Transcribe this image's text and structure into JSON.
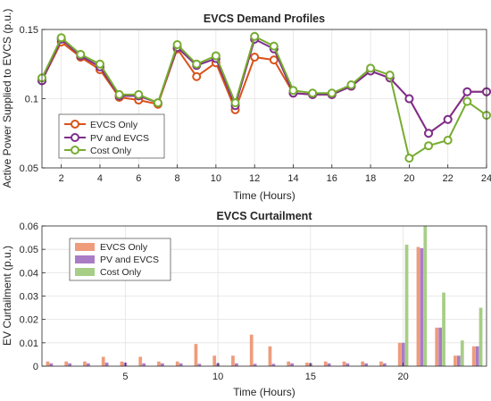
{
  "chart_data": [
    {
      "type": "line",
      "title": "EVCS Demand Profiles",
      "xlabel": "Time (Hours)",
      "ylabel": "Active Power Supplied to EVCS (p.u.)",
      "xlim": [
        1,
        24
      ],
      "ylim": [
        0.05,
        0.15
      ],
      "xticks": [
        2,
        4,
        6,
        8,
        10,
        12,
        14,
        16,
        18,
        20,
        22,
        24
      ],
      "yticks": [
        0.05,
        0.1,
        0.15
      ],
      "ytick_labels": [
        "0.05",
        "0.1",
        "0.15"
      ],
      "grid": true,
      "legend_position": "left-lower",
      "x": [
        1,
        2,
        3,
        4,
        5,
        6,
        7,
        8,
        9,
        10,
        11,
        12,
        13,
        14,
        15,
        16,
        17,
        18,
        19,
        20,
        21,
        22,
        23,
        24
      ],
      "series": [
        {
          "name": "EVCS Only",
          "color": "#D95319",
          "values": [
            0.113,
            0.141,
            0.13,
            0.121,
            0.101,
            0.099,
            0.096,
            0.136,
            0.116,
            0.126,
            0.092,
            0.13,
            0.128,
            0.104,
            0.103,
            0.103,
            0.109,
            0.12,
            0.115,
            0.1,
            0.075,
            0.085,
            0.105,
            0.105
          ]
        },
        {
          "name": "PV and EVCS",
          "color": "#7E2F8E",
          "values": [
            0.113,
            0.143,
            0.131,
            0.123,
            0.102,
            0.102,
            0.097,
            0.137,
            0.124,
            0.129,
            0.095,
            0.143,
            0.136,
            0.104,
            0.103,
            0.103,
            0.109,
            0.12,
            0.115,
            0.1,
            0.075,
            0.085,
            0.105,
            0.105
          ]
        },
        {
          "name": "Cost Only",
          "color": "#77AC30",
          "values": [
            0.115,
            0.144,
            0.132,
            0.125,
            0.103,
            0.103,
            0.097,
            0.139,
            0.125,
            0.131,
            0.097,
            0.145,
            0.138,
            0.106,
            0.104,
            0.104,
            0.11,
            0.122,
            0.117,
            0.057,
            0.066,
            0.07,
            0.098,
            0.088
          ]
        }
      ]
    },
    {
      "type": "bar",
      "title": "EVCS Curtailment",
      "xlabel": "Time (Hours)",
      "ylabel": "EV Curtailment (p.u.)",
      "xlim": [
        0.5,
        24.5
      ],
      "ylim": [
        0,
        0.06
      ],
      "xticks": [
        5,
        10,
        15,
        20
      ],
      "yticks": [
        0,
        0.01,
        0.02,
        0.03,
        0.04,
        0.05,
        0.06
      ],
      "ytick_labels": [
        "0",
        "0.01",
        "0.02",
        "0.03",
        "0.04",
        "0.05",
        "0.06"
      ],
      "grid": true,
      "legend_position": "top-left",
      "categories": [
        1,
        2,
        3,
        4,
        5,
        6,
        7,
        8,
        9,
        10,
        11,
        12,
        13,
        14,
        15,
        16,
        17,
        18,
        19,
        20,
        21,
        22,
        23,
        24
      ],
      "series": [
        {
          "name": "EVCS Only",
          "color": "#EE9C7C",
          "values": [
            0.002,
            0.002,
            0.002,
            0.004,
            0.002,
            0.004,
            0.002,
            0.002,
            0.0095,
            0.0045,
            0.0045,
            0.0135,
            0.0085,
            0.002,
            0.0015,
            0.002,
            0.002,
            0.002,
            0.002,
            0.01,
            0.051,
            0.0165,
            0.0045,
            0.0085
          ]
        },
        {
          "name": "PV and EVCS",
          "color": "#A97CC6",
          "values": [
            0.0012,
            0.0012,
            0.0012,
            0.0015,
            0.0015,
            0.0012,
            0.0012,
            0.0012,
            0.001,
            0.0012,
            0.0012,
            0.001,
            0.001,
            0.0012,
            0.0012,
            0.0012,
            0.0012,
            0.0012,
            0.0012,
            0.01,
            0.0505,
            0.0165,
            0.0045,
            0.0085
          ]
        },
        {
          "name": "Cost Only",
          "color": "#A6CE86",
          "values": [
            0,
            0,
            0,
            0,
            0,
            0,
            0,
            0,
            0,
            0,
            0,
            0,
            0,
            0,
            0,
            0,
            0,
            0,
            0,
            0.052,
            0.06,
            0.0315,
            0.011,
            0.025
          ]
        }
      ]
    }
  ]
}
